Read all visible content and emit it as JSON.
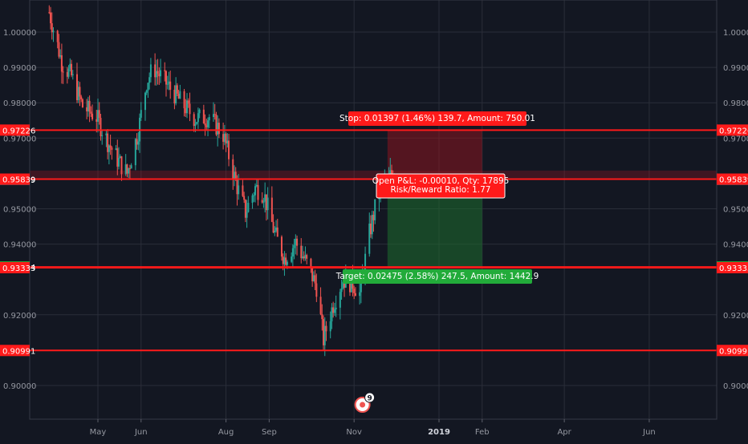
{
  "theme": {
    "background": "#131722",
    "grid": "#2a2e39",
    "axis_text": "#9598a1",
    "up": "#26a69a",
    "down": "#ef5350",
    "line_red": "#ff1a1a",
    "label_red": "#ff1a1a",
    "label_green": "#22ab3a",
    "label_gray": "#4b4f5a"
  },
  "chart_data": {
    "type": "candlestick",
    "y_ticks": [
      "1.00000",
      "0.99000",
      "0.98000",
      "0.97000",
      "0.95000",
      "0.94000",
      "0.92000",
      "0.90000"
    ],
    "x_ticks": [
      {
        "label": "May",
        "date": "2018-05-01",
        "bold": false
      },
      {
        "label": "Jun",
        "date": "2018-06-01",
        "bold": false
      },
      {
        "label": "Aug",
        "date": "2018-08-01",
        "bold": false
      },
      {
        "label": "Sep",
        "date": "2018-09-01",
        "bold": false
      },
      {
        "label": "Nov",
        "date": "2018-11-01",
        "bold": false
      },
      {
        "label": "2019",
        "date": "2019-01-01",
        "bold": true
      },
      {
        "label": "Feb",
        "date": "2019-02-01",
        "bold": false
      },
      {
        "label": "Apr",
        "date": "2019-04-01",
        "bold": false
      },
      {
        "label": "Jun",
        "date": "2019-06-01",
        "bold": false
      }
    ],
    "price_path": [
      [
        "2018-03-27",
        1.0056
      ],
      [
        "2018-04-05",
        0.9915
      ],
      [
        "2018-04-12",
        0.9875
      ],
      [
        "2018-04-20",
        0.979
      ],
      [
        "2018-04-30",
        0.976
      ],
      [
        "2018-05-08",
        0.969
      ],
      [
        "2018-05-15",
        0.964
      ],
      [
        "2018-05-22",
        0.96
      ],
      [
        "2018-05-30",
        0.972
      ],
      [
        "2018-06-05",
        0.986
      ],
      [
        "2018-06-10",
        0.99
      ],
      [
        "2018-06-20",
        0.985
      ],
      [
        "2018-06-30",
        0.98
      ],
      [
        "2018-07-10",
        0.9755
      ],
      [
        "2018-07-20",
        0.976
      ],
      [
        "2018-07-30",
        0.971
      ],
      [
        "2018-08-08",
        0.9575
      ],
      [
        "2018-08-15",
        0.949
      ],
      [
        "2018-08-22",
        0.956
      ],
      [
        "2018-08-28",
        0.9545
      ],
      [
        "2018-09-05",
        0.943
      ],
      [
        "2018-09-12",
        0.936
      ],
      [
        "2018-09-20",
        0.9405
      ],
      [
        "2018-09-28",
        0.9345
      ],
      [
        "2018-10-05",
        0.928
      ],
      [
        "2018-10-10",
        0.913
      ],
      [
        "2018-10-17",
        0.923
      ],
      [
        "2018-10-24",
        0.93
      ],
      [
        "2018-10-31",
        0.929
      ],
      [
        "2018-11-05",
        0.926
      ],
      [
        "2018-11-12",
        0.943
      ],
      [
        "2018-11-18",
        0.9535
      ],
      [
        "2018-11-25",
        0.958
      ],
      [
        "2018-11-30",
        0.961
      ]
    ],
    "horizontal_lines": [
      0.97226,
      0.95839,
      0.93354,
      0.93333,
      0.90991
    ],
    "price_labels": [
      {
        "value": "0.97226",
        "price": 0.97226,
        "color": "red"
      },
      {
        "value": "0.95829",
        "price": 0.95829,
        "color": "gray"
      },
      {
        "value": "0.95839",
        "price": 0.95839,
        "color": "red"
      },
      {
        "value": "0.93354",
        "price": 0.93354,
        "color": "green"
      },
      {
        "value": "0.93333",
        "price": 0.93333,
        "color": "red"
      },
      {
        "value": "0.90991",
        "price": 0.90991,
        "color": "red"
      }
    ],
    "position": {
      "entry": 0.95829,
      "stop": 0.97226,
      "target": 0.93354,
      "start_date": "2018-11-25",
      "end_date": "2019-02-01",
      "stop_label": "Stop: 0.01397 (1.46%) 139.7, Amount: 750.01",
      "pnl_label_line1": "Open P&L: -0.00010, Qty: 17895",
      "pnl_label_line2": "Risk/Reward Ratio: 1.77",
      "target_label": "Target: 0.02475 (2.58%) 247.5, Amount: 1442.9"
    },
    "resistance_band": [
      0.95829,
      0.9608
    ],
    "event_badge": {
      "date": "2018-11-07",
      "count": "9"
    }
  }
}
